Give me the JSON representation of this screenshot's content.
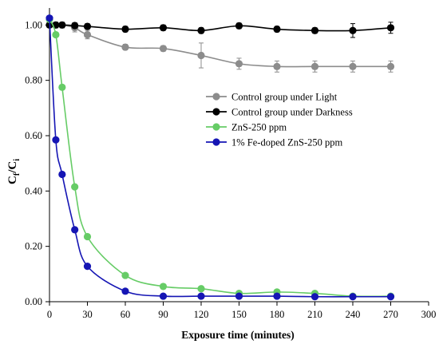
{
  "chart_data": {
    "type": "line",
    "title": "",
    "xlabel": "Exposure time (minutes)",
    "ylabel": {
      "base": "C",
      "sub1": "f",
      "sep": "/C",
      "sub2": "i"
    },
    "xlim": [
      0,
      300
    ],
    "ylim": [
      0,
      1.05
    ],
    "xticks": [
      0,
      30,
      60,
      90,
      120,
      150,
      180,
      210,
      240,
      270,
      300
    ],
    "yticks": [
      0,
      0.2,
      0.4,
      0.6,
      0.8,
      1.0
    ],
    "ytick_labels": [
      "0.00",
      "0.20",
      "0.40",
      "0.60",
      "0.80",
      "1.00"
    ],
    "grid": false,
    "legend_position": "right-middle",
    "series": [
      {
        "name": "Control group under Light",
        "color": "#8c8c8c",
        "x": [
          0,
          5,
          10,
          20,
          30,
          60,
          90,
          120,
          150,
          180,
          210,
          240,
          270
        ],
        "y": [
          1.0,
          1.0,
          1.0,
          0.99,
          0.965,
          0.92,
          0.915,
          0.89,
          0.86,
          0.85,
          0.85,
          0.85,
          0.85
        ],
        "err": [
          0.0,
          0.01,
          0.01,
          0.015,
          0.015,
          0.01,
          0.01,
          0.045,
          0.02,
          0.02,
          0.02,
          0.02,
          0.02
        ]
      },
      {
        "name": "Control group under Darkness",
        "color": "#000000",
        "x": [
          0,
          5,
          10,
          20,
          30,
          60,
          90,
          120,
          150,
          180,
          210,
          240,
          270
        ],
        "y": [
          1.0,
          1.0,
          1.0,
          0.998,
          0.995,
          0.985,
          0.99,
          0.98,
          0.997,
          0.985,
          0.98,
          0.98,
          0.99
        ],
        "err": [
          0.0,
          0.01,
          0.01,
          0.01,
          0.01,
          0.01,
          0.01,
          0.01,
          0.01,
          0.01,
          0.01,
          0.025,
          0.02
        ]
      },
      {
        "name": "ZnS-250 ppm",
        "color": "#66cc66",
        "x": [
          0,
          5,
          10,
          20,
          30,
          60,
          90,
          120,
          150,
          180,
          210,
          240,
          270
        ],
        "y": [
          1.02,
          0.965,
          0.775,
          0.415,
          0.235,
          0.095,
          0.055,
          0.047,
          0.03,
          0.035,
          0.03,
          0.02,
          0.02
        ],
        "err": [
          0,
          0,
          0,
          0,
          0,
          0,
          0,
          0,
          0,
          0,
          0,
          0,
          0
        ]
      },
      {
        "name": "1% Fe-doped ZnS-250 ppm",
        "color": "#1515b4",
        "x": [
          0,
          5,
          10,
          20,
          30,
          60,
          90,
          120,
          150,
          180,
          210,
          240,
          270
        ],
        "y": [
          1.025,
          0.585,
          0.46,
          0.26,
          0.128,
          0.038,
          0.02,
          0.02,
          0.02,
          0.02,
          0.018,
          0.018,
          0.018
        ],
        "err": [
          0,
          0,
          0,
          0,
          0,
          0,
          0,
          0,
          0,
          0,
          0,
          0,
          0
        ]
      }
    ]
  }
}
